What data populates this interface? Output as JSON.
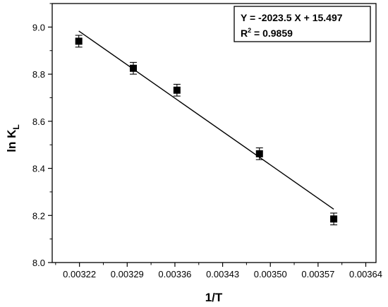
{
  "chart_data": {
    "type": "scatter",
    "xlabel": "1/T",
    "ylabel_main": "ln K",
    "ylabel_sub": "L",
    "xlim": [
      0.00318,
      0.003655
    ],
    "ylim": [
      8.0,
      9.1
    ],
    "x_ticks": [
      0.00322,
      0.00329,
      0.00336,
      0.00343,
      0.0035,
      0.00357,
      0.00364
    ],
    "x_tick_labels": [
      "0.00322",
      "0.00329",
      "0.00336",
      "0.00343",
      "0.00350",
      "0.00357",
      "0.00364"
    ],
    "y_ticks": [
      8.0,
      8.2,
      8.4,
      8.6,
      8.8,
      9.0
    ],
    "y_tick_labels": [
      "8.0",
      "8.2",
      "8.4",
      "8.6",
      "8.8",
      "9.0"
    ],
    "points": [
      {
        "x": 0.003219,
        "y": 8.94,
        "err": 0.025
      },
      {
        "x": 0.003299,
        "y": 8.825,
        "err": 0.025
      },
      {
        "x": 0.003363,
        "y": 8.732,
        "err": 0.025
      },
      {
        "x": 0.003484,
        "y": 8.462,
        "err": 0.025
      },
      {
        "x": 0.003593,
        "y": 8.185,
        "err": 0.025
      }
    ],
    "fit": {
      "slope": -2023.5,
      "intercept": 15.497,
      "x_range": [
        0.003219,
        0.003593
      ]
    },
    "annotation": {
      "equation": "Y = -2023.5 X + 15.497",
      "r2_prefix": "R",
      "r2_sup": "2",
      "r2_suffix": " = 0.9859"
    }
  }
}
